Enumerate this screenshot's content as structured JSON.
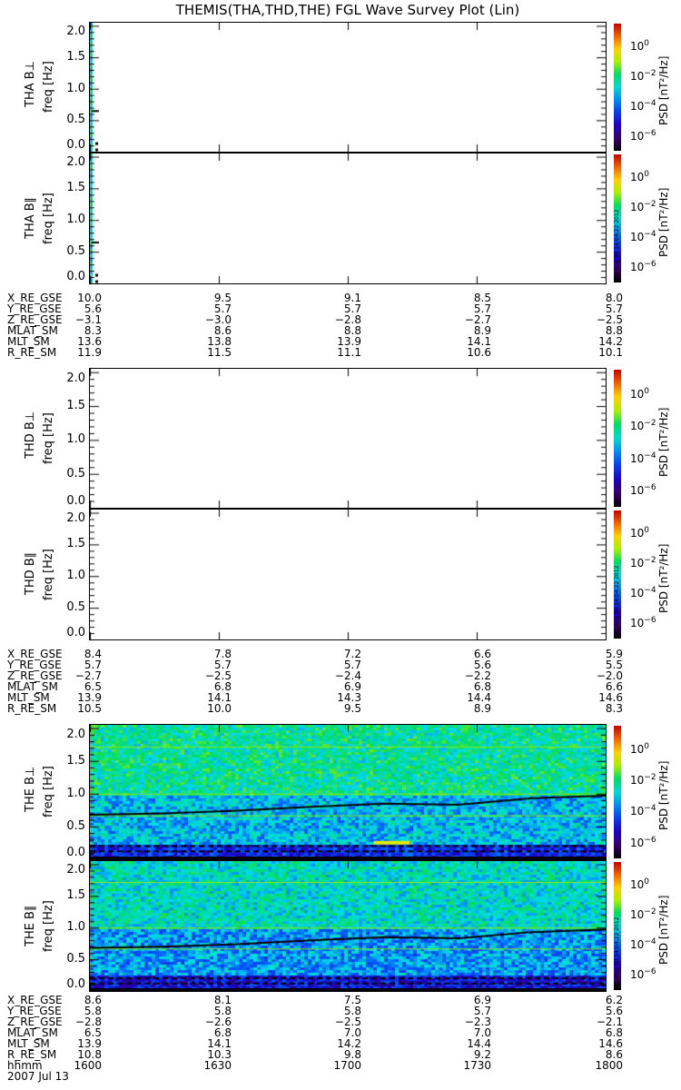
{
  "chart_data": {
    "type": "heatmap",
    "title": "THEMIS(THA,THD,THE) FGL Wave Survey Plot (Lin)",
    "date": "2007 Jul 13",
    "x_label": "hhmm",
    "x_ticks": [
      "1600",
      "1630",
      "1700",
      "1730",
      "1800"
    ],
    "ylim": [
      0,
      2.05
    ],
    "y_ticks": [
      "0.0",
      "0.5",
      "1.0",
      "1.5",
      "2.0"
    ],
    "y_unit": "freq [Hz]",
    "colorbar": {
      "label": "PSD [nT²/Hz]",
      "range_log10": [
        -7,
        1.5
      ],
      "ticks": [
        {
          "b": "10",
          "e": "0"
        },
        {
          "b": "10",
          "e": "-2"
        },
        {
          "b": "10",
          "e": "-4"
        },
        {
          "b": "10",
          "e": "-6"
        }
      ]
    },
    "timestamp": "Thu Aug 30 14:04:22 2012",
    "panels": [
      {
        "label": "THA B⊥",
        "probe": "THA",
        "data": "edge-only"
      },
      {
        "label": "THA B∥",
        "probe": "THA",
        "data": "edge-only"
      },
      {
        "label": "THD B⊥",
        "probe": "THD",
        "data": "empty"
      },
      {
        "label": "THD B∥",
        "probe": "THD",
        "data": "empty"
      },
      {
        "label": "THE B⊥",
        "probe": "THE",
        "data": "full",
        "line_hz": [
          0.68,
          0.7,
          0.74,
          0.8,
          0.85,
          0.88,
          0.93,
          0.97
        ]
      },
      {
        "label": "THE B∥",
        "probe": "THE",
        "data": "full",
        "line_hz": [
          0.68,
          0.7,
          0.74,
          0.8,
          0.85,
          0.88,
          0.93,
          0.97
        ]
      }
    ],
    "ephemeris": [
      {
        "probe": "THA",
        "rows": [
          {
            "label": "X_RE_GSE",
            "values": [
              "10.0",
              "9.5",
              "9.1",
              "8.5",
              "8.0"
            ]
          },
          {
            "label": "Y_RE_GSE",
            "values": [
              "5.6",
              "5.7",
              "5.7",
              "5.7",
              "5.7"
            ]
          },
          {
            "label": "Z_RE_GSE",
            "values": [
              "−3.1",
              "−3.0",
              "−2.8",
              "−2.7",
              "−2.5"
            ]
          },
          {
            "label": "MLAT_SM",
            "values": [
              "8.3",
              "8.6",
              "8.8",
              "8.9",
              "8.8"
            ]
          },
          {
            "label": "MLT_SM",
            "values": [
              "13.6",
              "13.8",
              "13.9",
              "14.1",
              "14.2"
            ]
          },
          {
            "label": "R_RE_SM",
            "values": [
              "11.9",
              "11.5",
              "11.1",
              "10.6",
              "10.1"
            ]
          }
        ]
      },
      {
        "probe": "THD",
        "rows": [
          {
            "label": "X_RE_GSE",
            "values": [
              "8.4",
              "7.8",
              "7.2",
              "6.6",
              "5.9"
            ]
          },
          {
            "label": "Y_RE_GSE",
            "values": [
              "5.7",
              "5.7",
              "5.7",
              "5.6",
              "5.5"
            ]
          },
          {
            "label": "Z_RE_GSE",
            "values": [
              "−2.7",
              "−2.5",
              "−2.4",
              "−2.2",
              "−2.0"
            ]
          },
          {
            "label": "MLAT_SM",
            "values": [
              "6.5",
              "6.8",
              "6.9",
              "6.8",
              "6.6"
            ]
          },
          {
            "label": "MLT_SM",
            "values": [
              "13.9",
              "14.1",
              "14.3",
              "14.4",
              "14.6"
            ]
          },
          {
            "label": "R_RE_SM",
            "values": [
              "10.5",
              "10.0",
              "9.5",
              "8.9",
              "8.3"
            ]
          }
        ]
      },
      {
        "probe": "THE",
        "rows": [
          {
            "label": "X_RE_GSE",
            "values": [
              "8.6",
              "8.1",
              "7.5",
              "6.9",
              "6.2"
            ]
          },
          {
            "label": "Y_RE_GSE",
            "values": [
              "5.8",
              "5.8",
              "5.8",
              "5.7",
              "5.6"
            ]
          },
          {
            "label": "Z_RE_GSE",
            "values": [
              "−2.8",
              "−2.6",
              "−2.5",
              "−2.3",
              "−2.1"
            ]
          },
          {
            "label": "MLAT_SM",
            "values": [
              "6.5",
              "6.8",
              "7.0",
              "7.0",
              "6.8"
            ]
          },
          {
            "label": "MLT_SM",
            "values": [
              "13.9",
              "14.1",
              "14.2",
              "14.4",
              "14.6"
            ]
          },
          {
            "label": "R_RE_SM",
            "values": [
              "10.8",
              "10.3",
              "9.8",
              "9.2",
              "8.6"
            ]
          },
          {
            "label": "hhmm",
            "values": [
              "1600",
              "1630",
              "1700",
              "1730",
              "1800"
            ]
          }
        ]
      }
    ]
  }
}
